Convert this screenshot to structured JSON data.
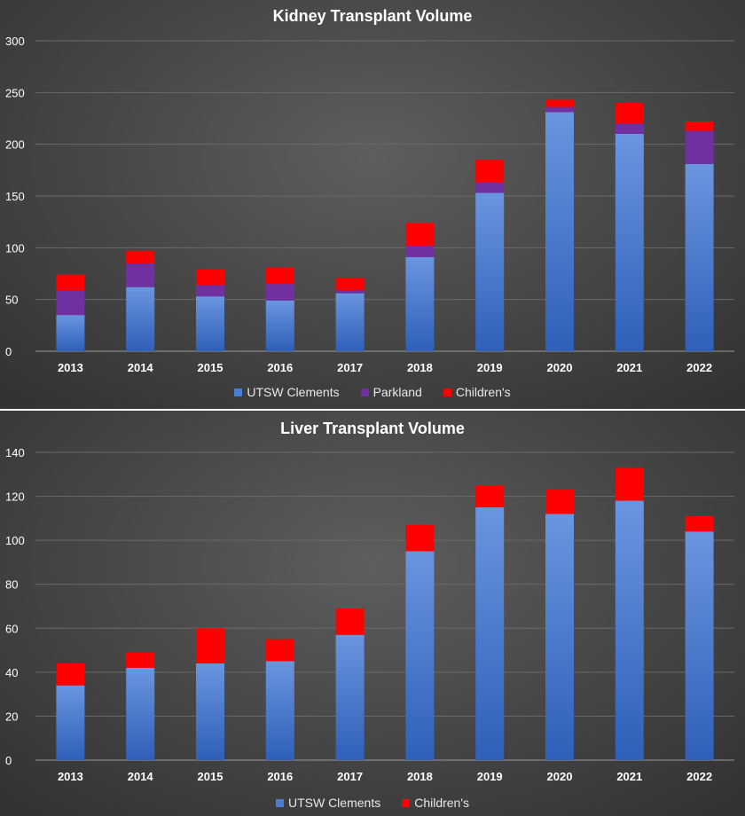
{
  "colors": {
    "utsw": "#4a7cd1",
    "utsw_dark": "#2f5fb8",
    "parkland": "#7030a0",
    "childrens": "#ff0000",
    "grid": "#6a6a6a",
    "axis_text": "#ffffff"
  },
  "chart_data": [
    {
      "type": "bar",
      "stacked": true,
      "title": "Kidney Transplant Volume",
      "categories": [
        "2013",
        "2014",
        "2015",
        "2016",
        "2017",
        "2018",
        "2019",
        "2020",
        "2021",
        "2022"
      ],
      "series": [
        {
          "name": "UTSW Clements",
          "values": [
            35,
            62,
            53,
            49,
            56,
            91,
            153,
            231,
            210,
            181
          ]
        },
        {
          "name": "Parkland",
          "values": [
            24,
            23,
            11,
            16,
            3,
            11,
            10,
            5,
            10,
            32
          ]
        },
        {
          "name": "Children's",
          "values": [
            15,
            12,
            15,
            16,
            12,
            22,
            22,
            7,
            20,
            9
          ]
        }
      ],
      "ylim": [
        0,
        300
      ],
      "yticks": [
        "0",
        "50",
        "100",
        "150",
        "200",
        "250",
        "300"
      ],
      "grid": true,
      "legend": "bottom"
    },
    {
      "type": "bar",
      "stacked": true,
      "title": "Liver Transplant Volume",
      "categories": [
        "2013",
        "2014",
        "2015",
        "2016",
        "2017",
        "2018",
        "2019",
        "2020",
        "2021",
        "2022"
      ],
      "series": [
        {
          "name": "UTSW Clements",
          "values": [
            34,
            42,
            44,
            45,
            57,
            95,
            115,
            112,
            118,
            104
          ]
        },
        {
          "name": "Children's",
          "values": [
            10,
            7,
            16,
            10,
            12,
            12,
            10,
            11,
            15,
            7
          ]
        }
      ],
      "ylim": [
        0,
        140
      ],
      "yticks": [
        "0",
        "20",
        "40",
        "60",
        "80",
        "100",
        "120",
        "140"
      ],
      "grid": true,
      "legend": "bottom"
    }
  ]
}
